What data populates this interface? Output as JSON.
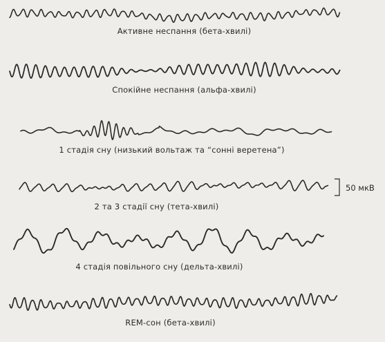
{
  "waves": [
    {
      "label": "Активне неспання (бета-хвилі)"
    },
    {
      "label": "Спокійне неспання (альфа-хвилі)"
    },
    {
      "label": "1 стадія сну (низький вольтаж та “сонні веретена”)"
    },
    {
      "label": "2 та 3 стадії сну (тета-хвилі)"
    },
    {
      "label": "4 стадія повільного сну (дельта-хвилі)"
    },
    {
      "label": "REM-сон (бета-хвилі)"
    }
  ],
  "scale_bar": {
    "label": "50 мкВ"
  },
  "colors": {
    "trace": "#2a2a2a",
    "background": "#efedea"
  }
}
